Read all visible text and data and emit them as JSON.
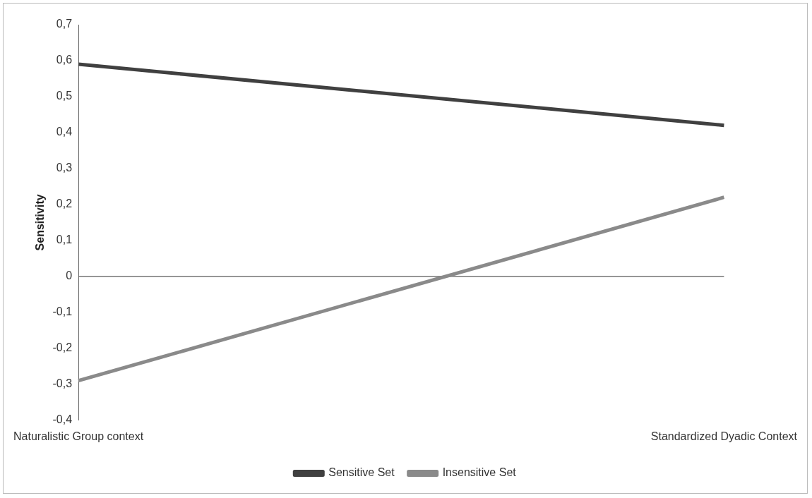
{
  "chart_data": {
    "type": "line",
    "ylabel": "Sensitivity",
    "categories": [
      "Naturalistic Group context",
      "Standardized Dyadic Context"
    ],
    "series": [
      {
        "name": "Sensitive Set",
        "color": "#404040",
        "values": [
          0.59,
          0.42
        ]
      },
      {
        "name": "Insensitive Set",
        "color": "#8a8a8a",
        "values": [
          -0.29,
          0.22
        ]
      }
    ],
    "ylim": [
      -0.4,
      0.7
    ],
    "yticks": [
      {
        "value": -0.4,
        "label": "-0,4"
      },
      {
        "value": -0.3,
        "label": "-0,3"
      },
      {
        "value": -0.2,
        "label": "-0,2"
      },
      {
        "value": -0.1,
        "label": "-0,1"
      },
      {
        "value": 0,
        "label": "0"
      },
      {
        "value": 0.1,
        "label": "0,1"
      },
      {
        "value": 0.2,
        "label": "0,2"
      },
      {
        "value": 0.3,
        "label": "0,3"
      },
      {
        "value": 0.4,
        "label": "0,4"
      },
      {
        "value": 0.5,
        "label": "0,5"
      },
      {
        "value": 0.6,
        "label": "0,6"
      },
      {
        "value": 0.7,
        "label": "0,7"
      }
    ],
    "ref_lines": [
      {
        "axis": "y",
        "value": 0,
        "color": "#595959"
      }
    ],
    "grid": false,
    "legend": "bottom",
    "marker": "none",
    "line_style": "solid"
  }
}
